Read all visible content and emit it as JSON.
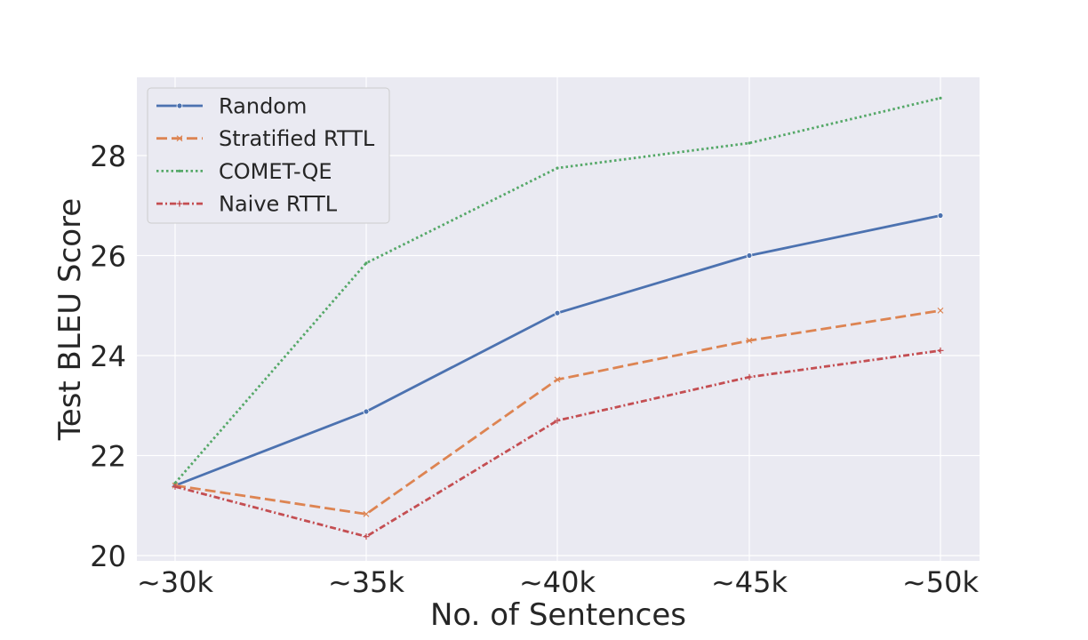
{
  "chart_data": {
    "type": "line",
    "title": "",
    "xlabel": "No. of Sentences",
    "ylabel": "Test BLEU Score",
    "categories": [
      "~30k",
      "~35k",
      "~40k",
      "~45k",
      "~50k"
    ],
    "yticks": [
      "20",
      "22",
      "24",
      "26",
      "28"
    ],
    "ylim": [
      19.95,
      29.6
    ],
    "grid": true,
    "legend_position": "top-left",
    "series": [
      {
        "name": "Random",
        "values": [
          21.4,
          22.88,
          24.85,
          26.0,
          26.8
        ],
        "color": "#4c72b0",
        "style": "solid",
        "marker": "circle"
      },
      {
        "name": "Stratified RTTL",
        "values": [
          21.4,
          20.83,
          23.52,
          24.3,
          24.9
        ],
        "color": "#dd8452",
        "style": "dashed",
        "marker": "x"
      },
      {
        "name": "COMET-QE",
        "values": [
          21.45,
          25.85,
          27.75,
          28.25,
          29.15
        ],
        "color": "#55a868",
        "style": "dotted",
        "marker": "none"
      },
      {
        "name": "Naive RTTL",
        "values": [
          21.38,
          20.38,
          22.7,
          23.57,
          24.1
        ],
        "color": "#c44e52",
        "style": "dashdot",
        "marker": "plus"
      }
    ]
  }
}
